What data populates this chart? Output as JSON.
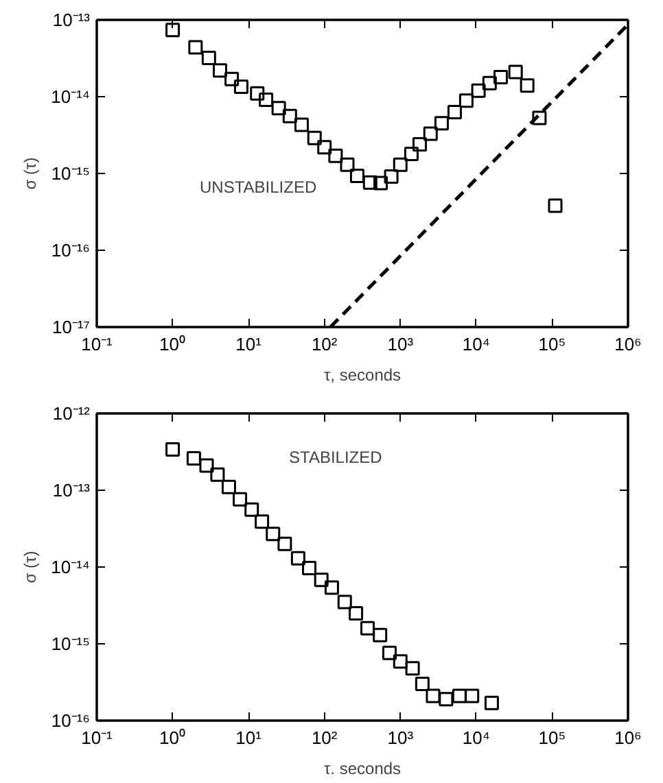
{
  "chart_data": [
    {
      "type": "scatter",
      "xlabel": "τ, seconds",
      "ylabel": "σ (τ)",
      "annotations": [
        "UNSTABILIZED"
      ],
      "log": "xy",
      "grid": false,
      "xlim": [
        0.1,
        1000000
      ],
      "ylim": [
        1e-17,
        1e-13
      ],
      "xticks": [
        {
          "value": 0.1,
          "label": "10⁻¹"
        },
        {
          "value": 1,
          "label": "10⁰"
        },
        {
          "value": 10,
          "label": "10¹"
        },
        {
          "value": 100,
          "label": "10²"
        },
        {
          "value": 1000,
          "label": "10³"
        },
        {
          "value": 10000,
          "label": "10⁴"
        },
        {
          "value": 100000,
          "label": "10⁵"
        },
        {
          "value": 1000000,
          "label": "10⁶"
        }
      ],
      "yticks": [
        {
          "value": 1e-17,
          "label": "10⁻¹⁷"
        },
        {
          "value": 1e-16,
          "label": "10⁻¹⁶"
        },
        {
          "value": 1e-15,
          "label": "10⁻¹⁵"
        },
        {
          "value": 1e-14,
          "label": "10⁻¹⁴"
        },
        {
          "value": 1e-13,
          "label": "10⁻¹³"
        }
      ],
      "series": [
        {
          "color": "#000000",
          "marker": "square",
          "x": [
            1,
            2,
            3,
            4.2,
            6,
            8,
            13,
            17,
            25,
            35,
            50,
            74,
            100,
            140,
            200,
            270,
            400,
            550,
            760,
            1000,
            1400,
            1800,
            2500,
            3500,
            5200,
            7400,
            10700,
            15000,
            21000,
            33000,
            47000,
            68000,
            110000
          ],
          "values": [
            7.4e-14,
            4.4e-14,
            3.2e-14,
            2.2e-14,
            1.7e-14,
            1.35e-14,
            1.1e-14,
            9.1e-15,
            7.1e-15,
            5.6e-15,
            4.3e-15,
            2.9e-15,
            2.2e-15,
            1.7e-15,
            1.3e-15,
            9.3e-16,
            7.6e-16,
            7.5e-16,
            9.1e-16,
            1.3e-15,
            1.8e-15,
            2.4e-15,
            3.3e-15,
            4.5e-15,
            6.3e-15,
            8.9e-15,
            1.2e-14,
            1.5e-14,
            1.8e-14,
            2.1e-14,
            1.4e-14,
            5.3e-15,
            3.8e-16
          ]
        },
        {
          "type": "line",
          "color": "#000000",
          "line_style": "dashed",
          "x": [
            120,
            1000000
          ],
          "values": [
            1e-17,
            8.7e-14
          ]
        }
      ]
    },
    {
      "type": "scatter",
      "xlabel": "τ. seconds",
      "ylabel": "σ (τ)",
      "annotations": [
        "STABILIZED"
      ],
      "log": "xy",
      "grid": false,
      "marker": "square",
      "xlim": [
        0.1,
        1000000
      ],
      "ylim": [
        1e-16,
        1e-12
      ],
      "xticks": [
        {
          "value": 0.1,
          "label": "10⁻¹"
        },
        {
          "value": 1,
          "label": "10⁰"
        },
        {
          "value": 10,
          "label": "10¹"
        },
        {
          "value": 100,
          "label": "10²"
        },
        {
          "value": 1000,
          "label": "10³"
        },
        {
          "value": 10000,
          "label": "10⁴"
        },
        {
          "value": 100000,
          "label": "10⁵"
        },
        {
          "value": 1000000,
          "label": "10⁶"
        }
      ],
      "yticks": [
        {
          "value": 1e-16,
          "label": "10⁻¹⁶"
        },
        {
          "value": 1e-15,
          "label": "10⁻¹⁵"
        },
        {
          "value": 1e-14,
          "label": "10⁻¹⁴"
        },
        {
          "value": 1e-13,
          "label": "10⁻¹³"
        },
        {
          "value": 1e-12,
          "label": "10⁻¹²"
        }
      ],
      "series": [
        {
          "color": "#000000",
          "x": [
            1,
            1.9,
            2.8,
            3.9,
            5.5,
            7.7,
            11,
            15,
            21,
            30,
            45,
            63,
            91,
            125,
            185,
            260,
            370,
            540,
            720,
            1000,
            1450,
            1950,
            2700,
            4000,
            6000,
            8800,
            16000
          ],
          "values": [
            3.4e-13,
            2.6e-13,
            2.1e-13,
            1.6e-13,
            1.1e-13,
            7.6e-14,
            5.6e-14,
            3.9e-14,
            2.7e-14,
            2e-14,
            1.3e-14,
            9.7e-15,
            6.8e-15,
            5.4e-15,
            3.5e-15,
            2.5e-15,
            1.6e-15,
            1.3e-15,
            7.6e-16,
            5.9e-16,
            4.8e-16,
            3e-16,
            2.1e-16,
            1.9e-16,
            2.1e-16,
            2.1e-16,
            1.7e-16
          ]
        }
      ]
    }
  ]
}
